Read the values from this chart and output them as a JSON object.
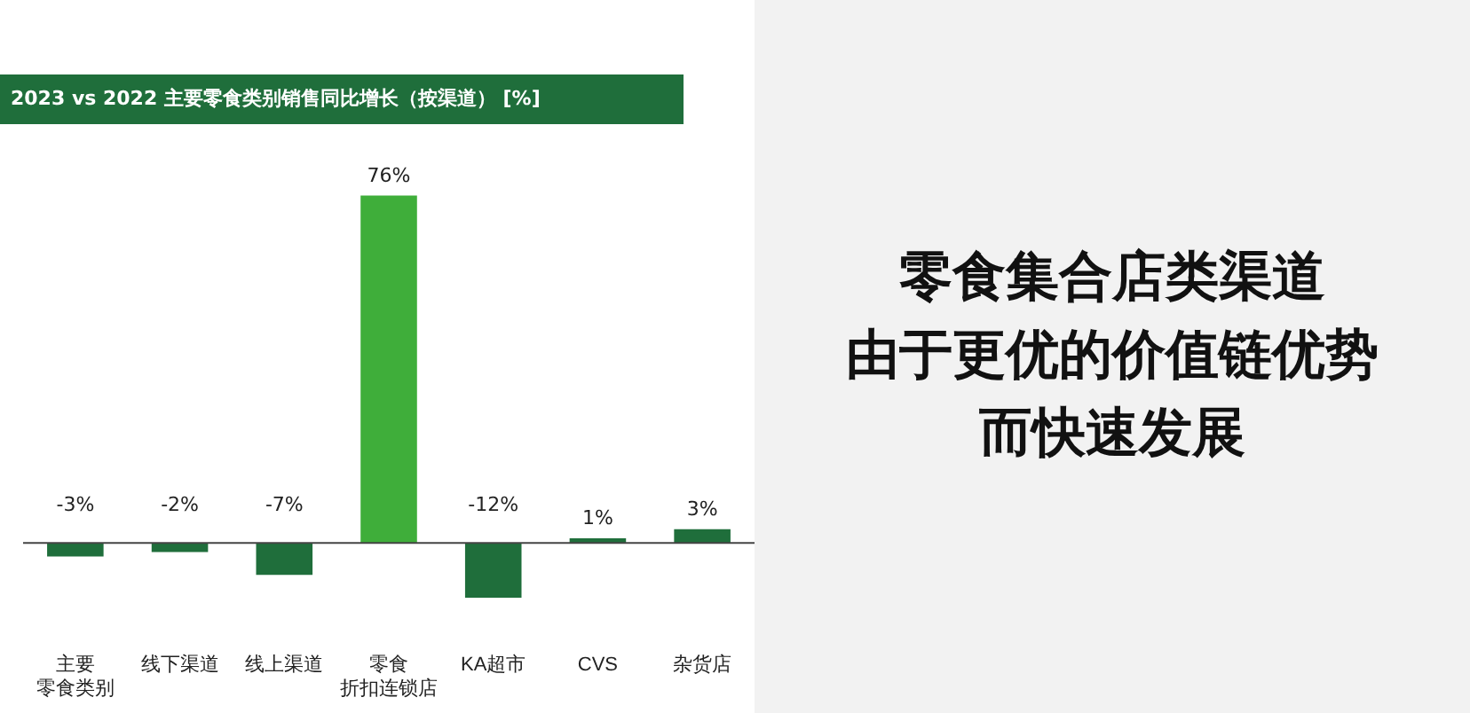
{
  "chart_data": {
    "type": "bar",
    "title": "2023 vs 2022 主要零食类别销售同比增长（按渠道） [%]",
    "categories": [
      "主要零食类别",
      "线下渠道",
      "线上渠道",
      "零食折扣连锁店",
      "KA超市",
      "CVS",
      "杂货店"
    ],
    "values": [
      -3,
      -2,
      -7,
      76,
      -12,
      1,
      3
    ],
    "colors": [
      "#1f6e3b",
      "#1f6e3b",
      "#1f6e3b",
      "#3fae3a",
      "#1f6e3b",
      "#1f6e3b",
      "#1f6e3b"
    ],
    "value_labels": [
      "-3%",
      "-2%",
      "-7%",
      "76%",
      "-12%",
      "1%",
      "3%"
    ],
    "relative": false,
    "annotations": [
      "零食集合店类渠道",
      "由于更优的价值链优势",
      "而快速发展"
    ]
  }
}
